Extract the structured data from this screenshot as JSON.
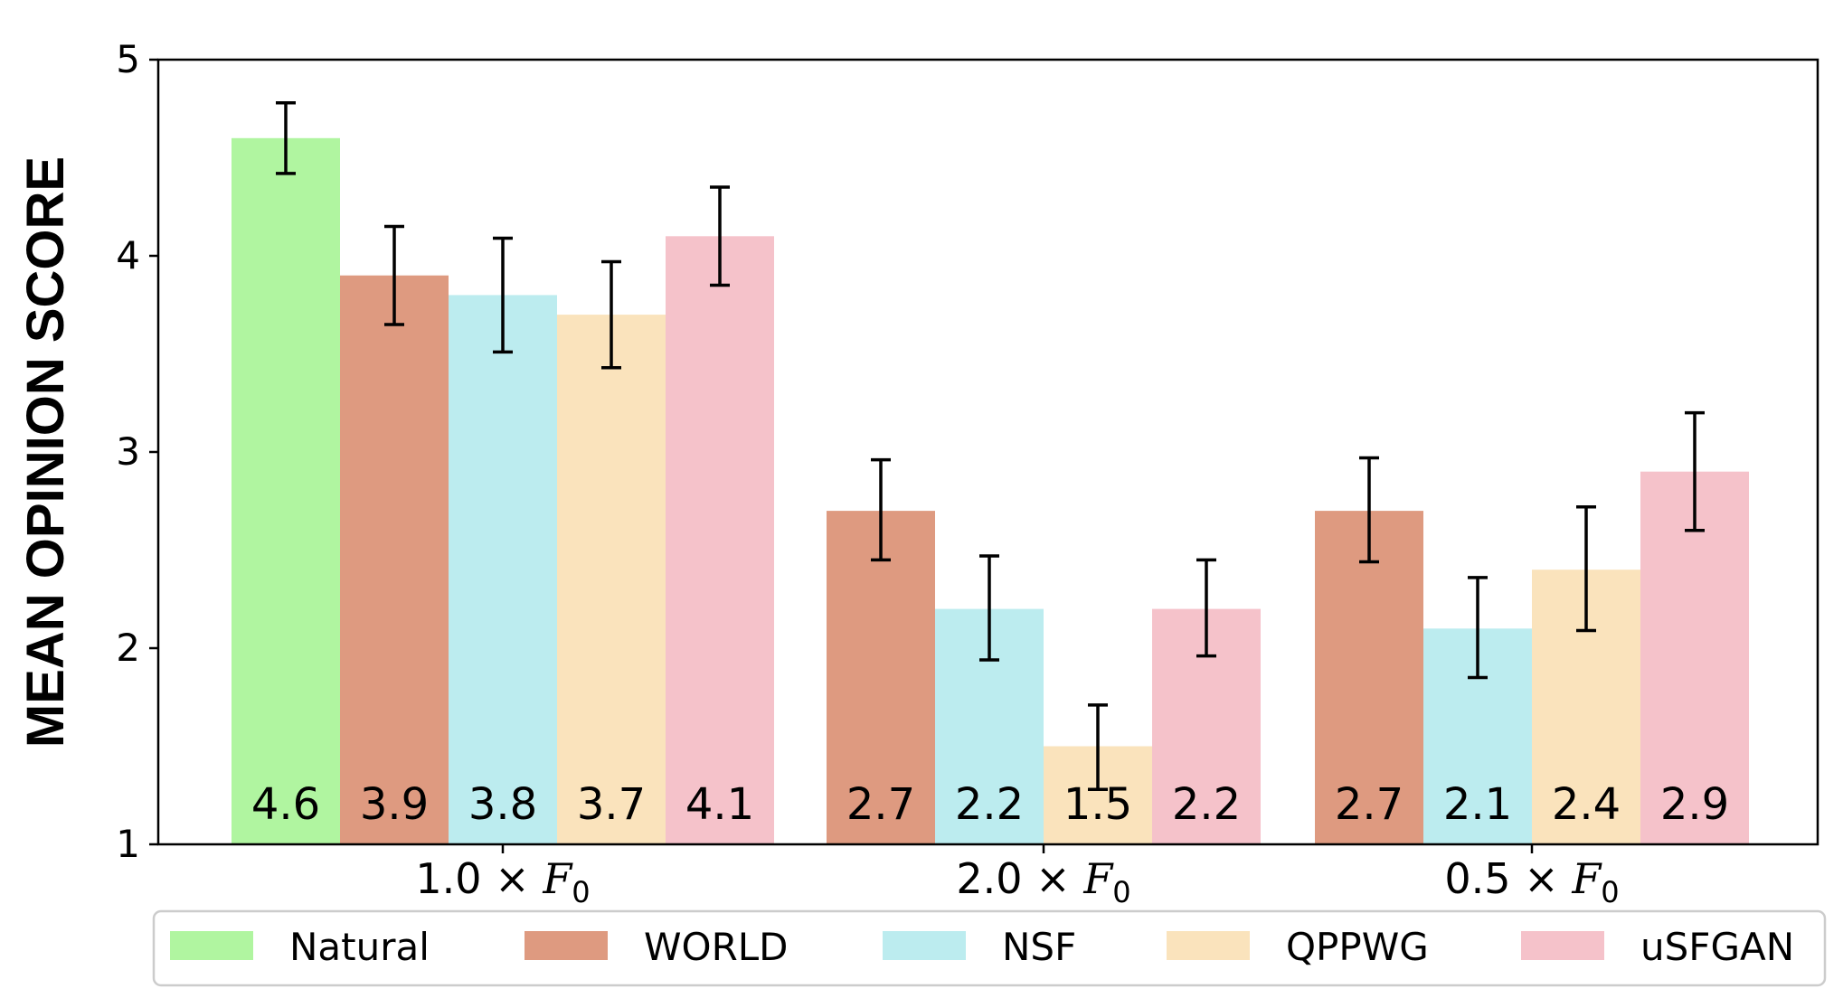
{
  "chart_data": {
    "type": "bar",
    "title": "",
    "xlabel": "",
    "ylabel": "MEAN OPINION SCORE",
    "ylim": [
      1,
      5
    ],
    "yticks": [
      "1",
      "2",
      "3",
      "4",
      "5"
    ],
    "grid": false,
    "legend_position": "bottom",
    "categories": [
      {
        "prefix": "1.0 × ",
        "var": "F",
        "sub": "0"
      },
      {
        "prefix": "2.0 × ",
        "var": "F",
        "sub": "0"
      },
      {
        "prefix": "0.5 × ",
        "var": "F",
        "sub": "0"
      }
    ],
    "series": [
      {
        "name": "Natural",
        "color": "#b0f5a0",
        "values": [
          4.6,
          null,
          null
        ],
        "labels": [
          "4.6",
          null,
          null
        ],
        "err_low": [
          4.42,
          null,
          null
        ],
        "err_high": [
          4.78,
          null,
          null
        ]
      },
      {
        "name": "WORLD",
        "color": "#de9a80",
        "values": [
          3.9,
          2.7,
          2.7
        ],
        "labels": [
          "3.9",
          "2.7",
          "2.7"
        ],
        "err_low": [
          3.65,
          2.45,
          2.44
        ],
        "err_high": [
          4.15,
          2.96,
          2.97
        ]
      },
      {
        "name": "NSF",
        "color": "#bcecef",
        "values": [
          3.8,
          2.2,
          2.1
        ],
        "labels": [
          "3.8",
          "2.2",
          "2.1"
        ],
        "err_low": [
          3.51,
          1.94,
          1.85
        ],
        "err_high": [
          4.09,
          2.47,
          2.36
        ]
      },
      {
        "name": "QPPWG",
        "color": "#fae3bc",
        "values": [
          3.7,
          1.5,
          2.4
        ],
        "labels": [
          "3.7",
          "1.5",
          "2.4"
        ],
        "err_low": [
          3.43,
          1.28,
          2.09
        ],
        "err_high": [
          3.97,
          1.71,
          2.72
        ]
      },
      {
        "name": "uSFGAN",
        "color": "#f5c2ca",
        "values": [
          4.1,
          2.2,
          2.9
        ],
        "labels": [
          "4.1",
          "2.2",
          "2.9"
        ],
        "err_low": [
          3.85,
          1.96,
          2.6
        ],
        "err_high": [
          4.35,
          2.45,
          3.2
        ]
      }
    ]
  }
}
